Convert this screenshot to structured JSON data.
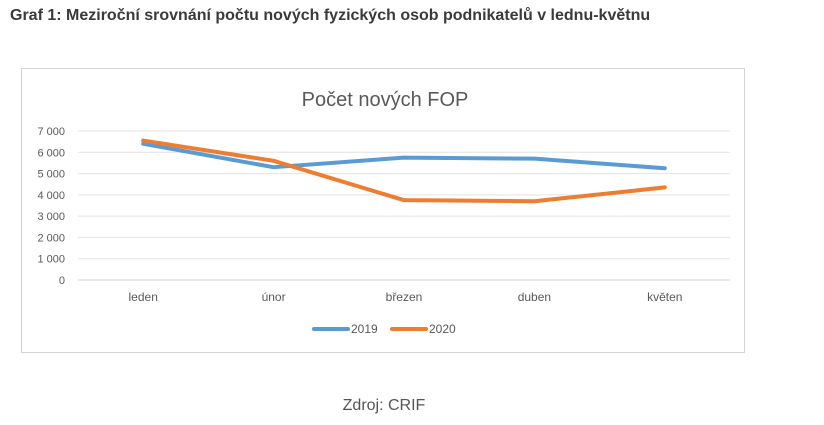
{
  "heading": "Graf 1: Meziroční srovnání počtu nových fyzických osob podnikatelů v lednu-květnu",
  "source": "Zdroj: CRIF",
  "chart_data": {
    "type": "line",
    "title": "Počet nových FOP",
    "categories": [
      "leden",
      "únor",
      "březen",
      "duben",
      "květen"
    ],
    "series": [
      {
        "name": "2019",
        "values": [
          6400,
          5300,
          5750,
          5700,
          5250
        ],
        "color": "#5b9bd5"
      },
      {
        "name": "2020",
        "values": [
          6550,
          5600,
          3750,
          3700,
          4350
        ],
        "color": "#ed7d31"
      }
    ],
    "ylim": [
      0,
      7000
    ],
    "yticks": [
      "0",
      "1 000",
      "2 000",
      "3 000",
      "4 000",
      "5 000",
      "6 000",
      "7 000"
    ],
    "grid": true,
    "legend": "bottom",
    "xlabel": "",
    "ylabel": ""
  }
}
